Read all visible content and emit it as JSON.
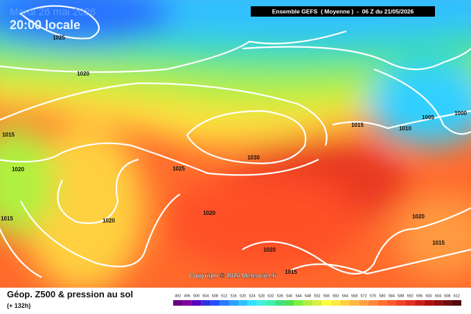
{
  "header": {
    "date": "Mardi 26 mai 2026",
    "time": "20:00 locale",
    "run": "Ensemble GEFS  ( Moyenne )  -  06 Z du 21/05/2026"
  },
  "map": {
    "isobar_labels": [
      "1025",
      "1020",
      "1015",
      "1015",
      "1020",
      "1025",
      "1030",
      "1020",
      "1020",
      "1020",
      "1015",
      "1015",
      "1010",
      "1005",
      "1000",
      "1020",
      "1015"
    ],
    "copyright": "Copyright © 2026 Meteociel.fr"
  },
  "footer": {
    "title": "Géop. Z500 & pression au sol",
    "lead": "(+ 132h)"
  },
  "colorbar": {
    "ticks": [
      492,
      496,
      500,
      504,
      508,
      512,
      516,
      520,
      524,
      528,
      532,
      536,
      540,
      544,
      548,
      552,
      556,
      560,
      564,
      568,
      572,
      576,
      580,
      584,
      588,
      592,
      596,
      600,
      604,
      608,
      612
    ],
    "colors": [
      "#6a0080",
      "#8000a0",
      "#5a00c0",
      "#3030e0",
      "#2050ff",
      "#2a7aff",
      "#2aa0ff",
      "#30c0ff",
      "#30e0ff",
      "#40f0e0",
      "#40f0b0",
      "#40e080",
      "#50e050",
      "#80f040",
      "#b0f040",
      "#d8f040",
      "#ffff40",
      "#ffe840",
      "#ffd040",
      "#ffb840",
      "#ffa040",
      "#ff8838",
      "#ff7030",
      "#ff5a2a",
      "#f04424",
      "#e03020",
      "#c82018",
      "#b01010",
      "#901010",
      "#701010",
      "#500808"
    ]
  }
}
